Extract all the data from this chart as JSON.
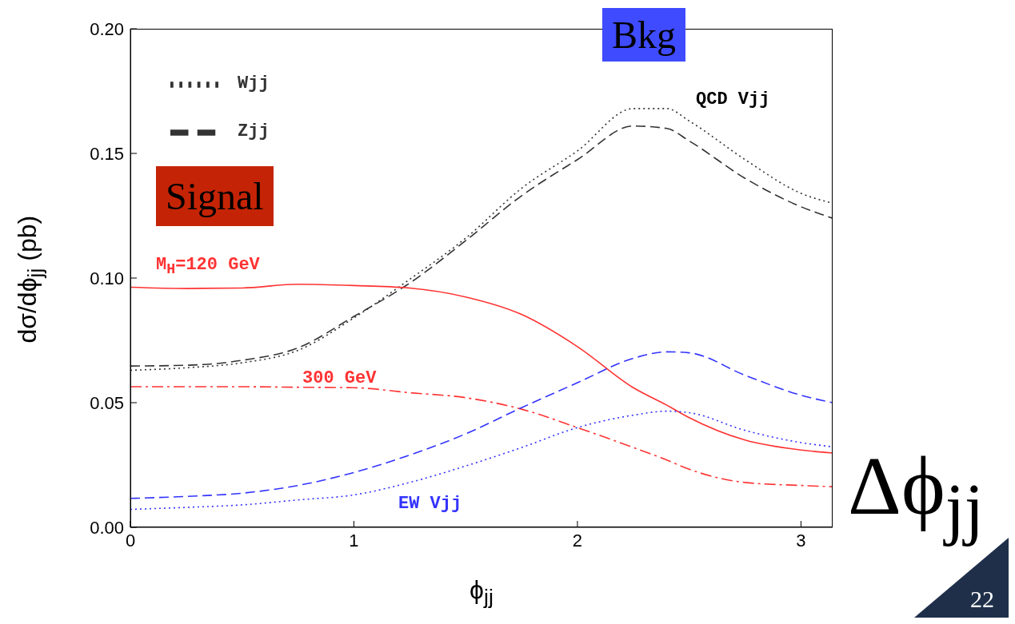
{
  "chart_data": {
    "type": "line",
    "xlabel": "ϕ$_{jj}$",
    "ylabel": "dσ/dϕ$_{jj}$ (pb)",
    "x": [
      0,
      0.25,
      0.5,
      0.75,
      1,
      1.25,
      1.5,
      1.75,
      2,
      2.25,
      2.4,
      2.5,
      2.75,
      3,
      3.1416
    ],
    "xlim": [
      0,
      3.1416
    ],
    "xticks": [
      0,
      1,
      2,
      3
    ],
    "ylim": [
      0,
      0.2
    ],
    "yticks": [
      {
        "value": 0,
        "label": "0.00"
      },
      {
        "value": 0.05,
        "label": "0.05"
      },
      {
        "value": 0.1,
        "label": "0.10"
      },
      {
        "value": 0.15,
        "label": "0.15"
      },
      {
        "value": 0.2,
        "label": "0.20"
      }
    ],
    "legend": "top left",
    "series": [
      {
        "name": "Zjj",
        "color": "#333333",
        "line_style": "dashed",
        "values": [
          0.0647,
          0.065,
          0.067,
          0.072,
          0.0846,
          0.098,
          0.115,
          0.133,
          0.1475,
          0.161,
          0.16,
          0.155,
          0.14,
          0.1286,
          0.124
        ]
      },
      {
        "name": "Wjj",
        "color": "#333333",
        "line_style": "dotted",
        "values": [
          0.063,
          0.064,
          0.066,
          0.071,
          0.084,
          0.0995,
          0.116,
          0.136,
          0.151,
          0.168,
          0.168,
          0.163,
          0.1475,
          0.134,
          0.13
        ]
      },
      {
        "color": "#ff3333",
        "line_style": "solid",
        "values": [
          0.0963,
          0.0958,
          0.096,
          0.0975,
          0.097,
          0.096,
          0.0924,
          0.0854,
          0.0725,
          0.056,
          0.049,
          0.044,
          0.035,
          0.031,
          0.0298
        ]
      },
      {
        "color": "#ff3333",
        "line_style": "dashdot",
        "values": [
          0.0564,
          0.0564,
          0.0564,
          0.0562,
          0.056,
          0.054,
          0.052,
          0.0474,
          0.04,
          0.032,
          0.027,
          0.0233,
          0.018,
          0.0168,
          0.0163
        ]
      },
      {
        "color": "#3333ff",
        "line_style": "dashed",
        "values": [
          0.0116,
          0.0124,
          0.0137,
          0.0168,
          0.022,
          0.029,
          0.0375,
          0.048,
          0.058,
          0.0678,
          0.0704,
          0.07,
          0.061,
          0.053,
          0.05
        ]
      },
      {
        "color": "#3333ff",
        "line_style": "dotted",
        "values": [
          0.0072,
          0.008,
          0.009,
          0.011,
          0.013,
          0.018,
          0.0246,
          0.032,
          0.04,
          0.045,
          0.0466,
          0.046,
          0.0389,
          0.034,
          0.0323
        ]
      }
    ],
    "annotations": [
      "M$_{H}$=120 GeV",
      "300 GeV",
      "QCD Vjj",
      "EW Vjj",
      "Signal",
      "Bkg",
      "Δϕ$_{jj}$",
      "22"
    ]
  }
}
